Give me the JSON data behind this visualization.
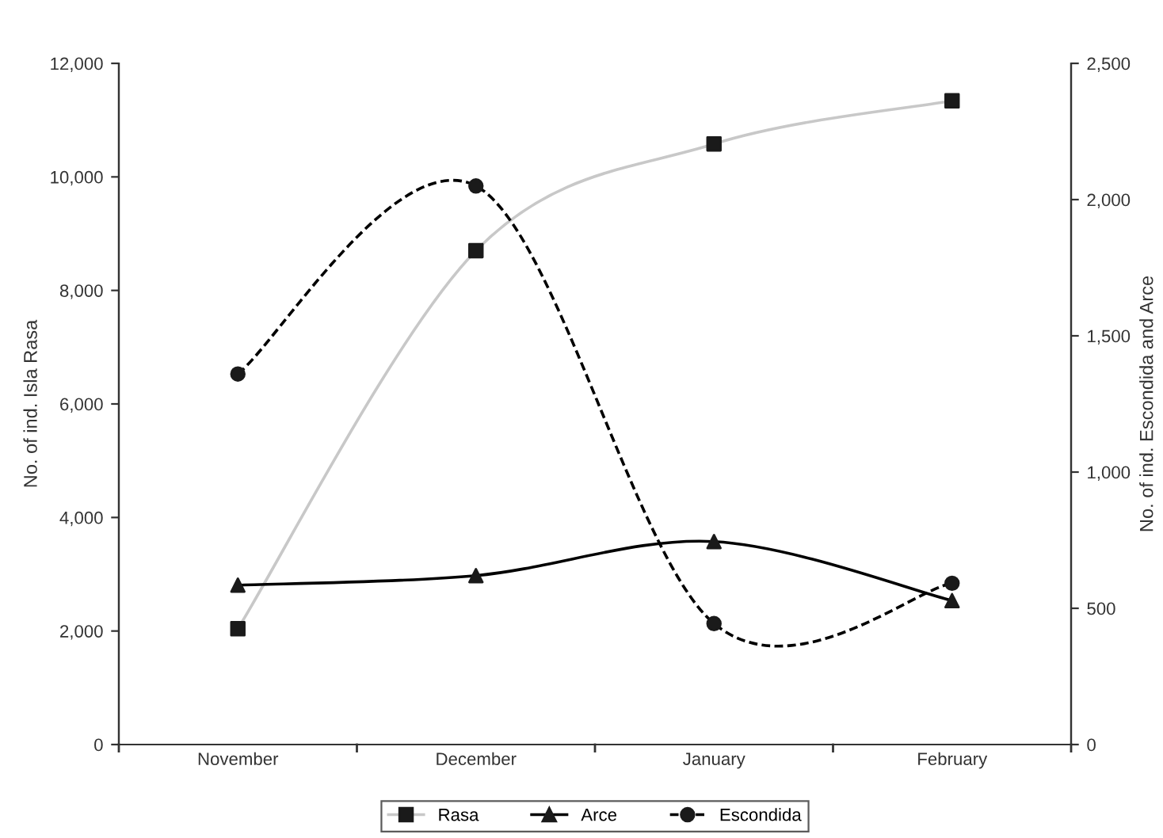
{
  "chart_data": {
    "type": "line",
    "ylabel": "No. of ind. Isla Rasa",
    "y2label": "No. of ind. Escondida and Arce",
    "categories": [
      "November",
      "December",
      "January",
      "February"
    ],
    "series": [
      {
        "name": "Rasa",
        "color": "#c8c8c8",
        "values": [
          2040,
          8700,
          10580,
          11340
        ],
        "marker": "square",
        "line_style": "solid"
      },
      {
        "name": "Arce",
        "color": "#000000",
        "values": [
          585,
          620,
          745,
          528
        ],
        "axis": "y2",
        "marker": "triangle",
        "line_style": "solid"
      },
      {
        "name": "Escondida",
        "color": "#000000",
        "values": [
          1360,
          2050,
          444,
          592
        ],
        "axis": "y2",
        "marker": "circle",
        "line_style": "dashed"
      }
    ],
    "ylim": [
      0,
      12000
    ],
    "yticks": [
      {
        "value": 0,
        "label": "0"
      },
      {
        "value": 2000,
        "label": "2,000"
      },
      {
        "value": 4000,
        "label": "4,000"
      },
      {
        "value": 6000,
        "label": "6,000"
      },
      {
        "value": 8000,
        "label": "8,000"
      },
      {
        "value": 10000,
        "label": "10,000"
      },
      {
        "value": 12000,
        "label": "12,000"
      }
    ],
    "y2lim": [
      0,
      2500
    ],
    "y2ticks": [
      {
        "value": 0,
        "label": "0"
      },
      {
        "value": 500,
        "label": "500"
      },
      {
        "value": 1000,
        "label": "1,000"
      },
      {
        "value": 1500,
        "label": "1,500"
      },
      {
        "value": 2000,
        "label": "2,000"
      },
      {
        "value": 2500,
        "label": "2,500"
      }
    ],
    "grid": false,
    "legend": "bottom"
  }
}
